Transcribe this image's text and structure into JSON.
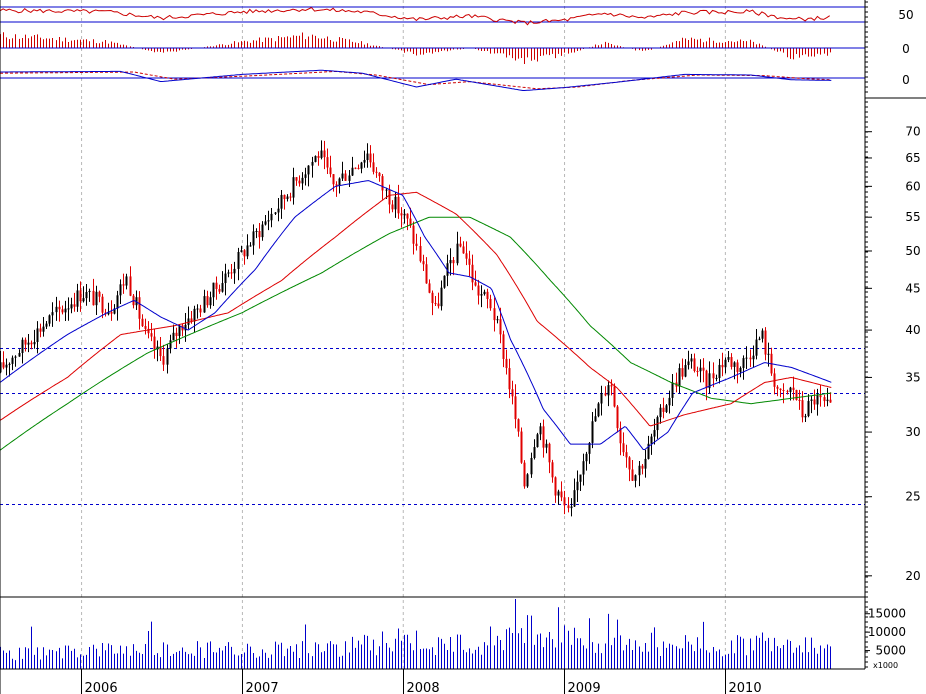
{
  "colors": {
    "up_candle": "#000000",
    "down_candle": "#e00000",
    "ma_short": "#0000cc",
    "ma_mid": "#dd0000",
    "ma_long": "#008800",
    "volume": "#0000cc",
    "hist": "#cc0000",
    "rsi": "#cc0000",
    "macd": "#0000cc",
    "signal": "#cc0000",
    "guide": "#0000cc",
    "grid": "#b8b8b8",
    "axis": "#000000"
  },
  "chart_data": {
    "type": "candlestick",
    "log_scale": true,
    "grid": true,
    "x_tick_labels": [
      "2006",
      "2007",
      "2008",
      "2009",
      "2010"
    ],
    "y_tick_labels": [
      "20",
      "25",
      "30",
      "35",
      "40",
      "45",
      "50",
      "55",
      "60",
      "65",
      "70"
    ],
    "y_ticks": [
      20,
      25,
      30,
      35,
      40,
      45,
      50,
      55,
      60,
      65,
      70
    ],
    "ylim": [
      19,
      74
    ],
    "horizontal_levels": [
      38,
      33.5,
      24.5
    ],
    "xlim": [
      "2005-07-01",
      "2010-11-15"
    ],
    "x_ticks": [
      "2006-01-01",
      "2007-01-01",
      "2008-01-01",
      "2009-01-01",
      "2010-01-01"
    ],
    "price_path": [
      [
        "2005-07-01",
        35.5
      ],
      [
        "2005-09-01",
        38.5
      ],
      [
        "2005-11-01",
        41.5
      ],
      [
        "2006-01-10",
        44.5
      ],
      [
        "2006-03-15",
        42.5
      ],
      [
        "2006-04-20",
        46.5
      ],
      [
        "2006-06-01",
        39.5
      ],
      [
        "2006-07-10",
        36.8
      ],
      [
        "2006-08-20",
        40.5
      ],
      [
        "2006-10-01",
        42.5
      ],
      [
        "2006-12-01",
        46.5
      ],
      [
        "2007-02-15",
        53.0
      ],
      [
        "2007-04-01",
        57.0
      ],
      [
        "2007-06-10",
        64.0
      ],
      [
        "2007-07-01",
        66.0
      ],
      [
        "2007-08-01",
        60.0
      ],
      [
        "2007-09-10",
        63.0
      ],
      [
        "2007-10-20",
        66.0
      ],
      [
        "2007-11-20",
        60.0
      ],
      [
        "2008-01-20",
        54.0
      ],
      [
        "2008-02-15",
        49.0
      ],
      [
        "2008-03-20",
        42.0
      ],
      [
        "2008-04-25",
        48.5
      ],
      [
        "2008-05-20",
        51.0
      ],
      [
        "2008-06-20",
        45.0
      ],
      [
        "2008-07-25",
        43.0
      ],
      [
        "2008-08-20",
        38.0
      ],
      [
        "2008-09-15",
        32.0
      ],
      [
        "2008-10-10",
        26.0
      ],
      [
        "2008-11-10",
        31.0
      ],
      [
        "2008-12-15",
        26.0
      ],
      [
        "2009-01-20",
        23.5
      ],
      [
        "2009-02-20",
        28.0
      ],
      [
        "2009-03-25",
        32.0
      ],
      [
        "2009-04-20",
        35.0
      ],
      [
        "2009-05-15",
        29.5
      ],
      [
        "2009-06-15",
        26.5
      ],
      [
        "2009-07-10",
        28.0
      ],
      [
        "2009-08-15",
        31.5
      ],
      [
        "2009-09-25",
        35.5
      ],
      [
        "2009-10-25",
        36.5
      ],
      [
        "2009-11-25",
        34.5
      ],
      [
        "2010-01-10",
        37.0
      ],
      [
        "2010-02-10",
        36.0
      ],
      [
        "2010-03-10",
        38.0
      ],
      [
        "2010-04-01",
        39.5
      ],
      [
        "2010-04-20",
        36.0
      ],
      [
        "2010-05-15",
        33.0
      ],
      [
        "2010-06-10",
        34.0
      ],
      [
        "2010-07-01",
        31.5
      ],
      [
        "2010-08-01",
        33.0
      ],
      [
        "2010-09-01",
        32.0
      ]
    ],
    "ma_short_path": [
      [
        "2005-07-01",
        34.5
      ],
      [
        "2005-12-01",
        39.5
      ],
      [
        "2006-03-01",
        42.0
      ],
      [
        "2006-05-01",
        43.5
      ],
      [
        "2006-07-01",
        41.5
      ],
      [
        "2006-09-01",
        40.0
      ],
      [
        "2006-11-01",
        42.0
      ],
      [
        "2007-02-01",
        47.5
      ],
      [
        "2007-05-01",
        55.0
      ],
      [
        "2007-08-01",
        60.0
      ],
      [
        "2007-10-15",
        61.0
      ],
      [
        "2008-01-01",
        58.5
      ],
      [
        "2008-02-20",
        52.0
      ],
      [
        "2008-04-15",
        47.0
      ],
      [
        "2008-06-01",
        46.5
      ],
      [
        "2008-07-20",
        45.0
      ],
      [
        "2008-09-01",
        39.0
      ],
      [
        "2008-11-15",
        32.0
      ],
      [
        "2009-01-15",
        29.0
      ],
      [
        "2009-03-25",
        29.0
      ],
      [
        "2009-05-20",
        30.5
      ],
      [
        "2009-07-01",
        28.5
      ],
      [
        "2009-08-25",
        30.0
      ],
      [
        "2009-10-20",
        33.5
      ],
      [
        "2010-01-15",
        35.0
      ],
      [
        "2010-04-01",
        36.5
      ],
      [
        "2010-06-01",
        36.0
      ],
      [
        "2010-09-01",
        34.5
      ]
    ],
    "ma_mid_path": [
      [
        "2005-07-01",
        31.0
      ],
      [
        "2005-12-01",
        35.0
      ],
      [
        "2006-04-01",
        39.5
      ],
      [
        "2006-08-01",
        40.5
      ],
      [
        "2006-12-01",
        42.0
      ],
      [
        "2007-04-01",
        46.0
      ],
      [
        "2007-08-01",
        52.0
      ],
      [
        "2007-12-01",
        58.5
      ],
      [
        "2008-02-01",
        59.0
      ],
      [
        "2008-05-01",
        55.5
      ],
      [
        "2008-08-01",
        49.5
      ],
      [
        "2008-11-01",
        41.0
      ],
      [
        "2009-03-01",
        36.0
      ],
      [
        "2009-05-01",
        34.0
      ],
      [
        "2009-07-15",
        30.5
      ],
      [
        "2009-10-01",
        31.5
      ],
      [
        "2010-01-15",
        32.5
      ],
      [
        "2010-04-01",
        34.5
      ],
      [
        "2010-06-01",
        35.0
      ],
      [
        "2010-09-01",
        34.0
      ]
    ],
    "ma_long_path": [
      [
        "2005-07-01",
        28.5
      ],
      [
        "2005-12-01",
        32.5
      ],
      [
        "2006-06-01",
        37.5
      ],
      [
        "2007-01-01",
        42.0
      ],
      [
        "2007-07-01",
        47.0
      ],
      [
        "2007-12-01",
        52.5
      ],
      [
        "2008-03-01",
        55.0
      ],
      [
        "2008-06-01",
        55.0
      ],
      [
        "2008-09-01",
        52.0
      ],
      [
        "2008-12-01",
        46.0
      ],
      [
        "2009-03-01",
        40.5
      ],
      [
        "2009-06-01",
        36.5
      ],
      [
        "2009-09-01",
        34.5
      ],
      [
        "2009-12-01",
        33.0
      ],
      [
        "2010-03-01",
        32.5
      ],
      [
        "2010-06-01",
        33.0
      ],
      [
        "2010-09-01",
        33.5
      ]
    ],
    "volume": {
      "tick_labels": [
        "15000",
        "10000",
        "5000"
      ],
      "ticks": [
        15000,
        10000,
        5000
      ],
      "max": 19000,
      "unit_label": "x1000",
      "path": [
        [
          "2005-07-01",
          5000
        ],
        [
          "2006-06-01",
          6000
        ],
        [
          "2007-01-01",
          6500
        ],
        [
          "2007-07-01",
          6500
        ],
        [
          "2008-01-01",
          9000
        ],
        [
          "2008-04-01",
          7500
        ],
        [
          "2008-08-01",
          8500
        ],
        [
          "2008-10-01",
          13000
        ],
        [
          "2009-01-01",
          9500
        ],
        [
          "2009-06-01",
          7500
        ],
        [
          "2010-01-01",
          7500
        ],
        [
          "2010-05-01",
          9000
        ],
        [
          "2010-09-01",
          6500
        ]
      ]
    },
    "rsi": {
      "tick_label": "50",
      "levels": [
        50
      ],
      "range": [
        30,
        70
      ],
      "path": [
        [
          "2005-07-01",
          58
        ],
        [
          "2006-03-01",
          56
        ],
        [
          "2006-07-01",
          47
        ],
        [
          "2007-01-01",
          56
        ],
        [
          "2007-06-01",
          60
        ],
        [
          "2007-10-01",
          56
        ],
        [
          "2008-02-01",
          45
        ],
        [
          "2008-06-01",
          50
        ],
        [
          "2008-10-01",
          40
        ],
        [
          "2009-01-01",
          44
        ],
        [
          "2009-04-01",
          54
        ],
        [
          "2009-07-01",
          47
        ],
        [
          "2009-10-01",
          55
        ],
        [
          "2010-03-01",
          56
        ],
        [
          "2010-06-01",
          45
        ],
        [
          "2010-09-01",
          48
        ]
      ]
    },
    "momentum": {
      "tick_label": "0",
      "path": [
        [
          "2005-07-01",
          1.0
        ],
        [
          "2006-03-01",
          0.5
        ],
        [
          "2006-07-01",
          -0.4
        ],
        [
          "2007-01-01",
          0.5
        ],
        [
          "2007-06-01",
          1.0
        ],
        [
          "2007-10-01",
          0.4
        ],
        [
          "2008-02-01",
          -0.5
        ],
        [
          "2008-06-01",
          0.0
        ],
        [
          "2008-10-01",
          -1.0
        ],
        [
          "2009-01-01",
          -0.5
        ],
        [
          "2009-04-01",
          0.4
        ],
        [
          "2009-07-01",
          -0.3
        ],
        [
          "2009-10-01",
          0.7
        ],
        [
          "2010-03-01",
          0.5
        ],
        [
          "2010-06-01",
          -0.7
        ],
        [
          "2010-09-01",
          -0.5
        ]
      ]
    },
    "macd": {
      "tick_label": "0",
      "path": [
        [
          "2005-07-01",
          1.0
        ],
        [
          "2006-04-01",
          1.1
        ],
        [
          "2006-07-01",
          -0.6
        ],
        [
          "2007-01-01",
          0.6
        ],
        [
          "2007-07-01",
          1.3
        ],
        [
          "2007-10-01",
          0.8
        ],
        [
          "2008-02-01",
          -1.5
        ],
        [
          "2008-05-01",
          -0.2
        ],
        [
          "2008-10-01",
          -2.1
        ],
        [
          "2009-01-01",
          -1.6
        ],
        [
          "2009-05-01",
          -0.7
        ],
        [
          "2009-10-01",
          0.6
        ],
        [
          "2010-03-01",
          0.5
        ],
        [
          "2010-06-01",
          -0.3
        ],
        [
          "2010-09-01",
          -0.4
        ]
      ],
      "signal_path": [
        [
          "2005-07-01",
          0.8
        ],
        [
          "2006-05-01",
          1.0
        ],
        [
          "2006-08-01",
          -0.2
        ],
        [
          "2007-02-01",
          0.4
        ],
        [
          "2007-08-01",
          1.1
        ],
        [
          "2007-11-01",
          0.5
        ],
        [
          "2008-03-01",
          -1.1
        ],
        [
          "2008-06-01",
          -0.6
        ],
        [
          "2008-11-01",
          -1.8
        ],
        [
          "2009-02-01",
          -1.5
        ],
        [
          "2009-06-01",
          -0.4
        ],
        [
          "2009-11-01",
          0.5
        ],
        [
          "2010-04-01",
          0.4
        ],
        [
          "2010-07-01",
          -0.1
        ],
        [
          "2010-09-01",
          -0.3
        ]
      ]
    }
  }
}
